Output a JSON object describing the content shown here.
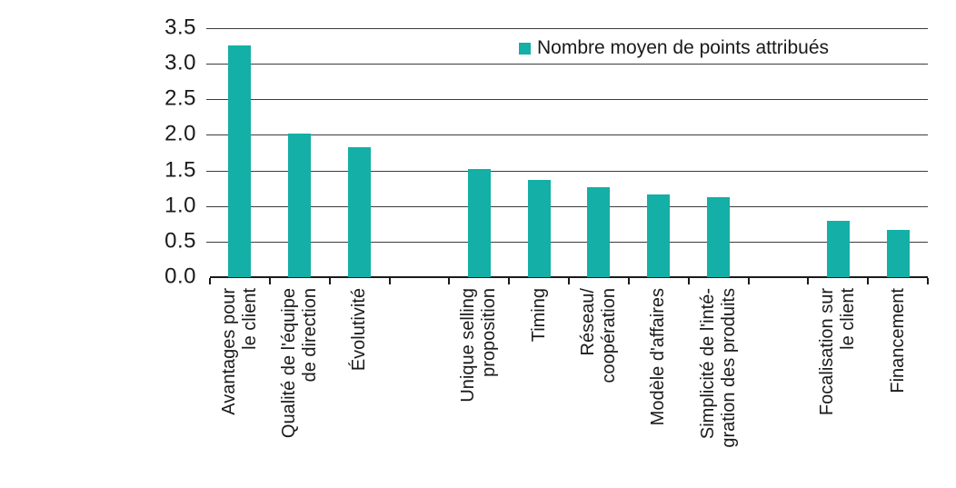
{
  "chart_data": {
    "type": "bar",
    "title": "",
    "xlabel": "",
    "ylabel": "",
    "legend": {
      "label": "Nombre moyen de points attribués",
      "position": "top-right"
    },
    "ylim": [
      0,
      3.5
    ],
    "ytick_step": 0.5,
    "ytick_labels": [
      "0.0",
      "0.5",
      "1.0",
      "1.5",
      "2.0",
      "2.5",
      "3.0",
      "3.5"
    ],
    "grid": "horizontal",
    "bar_color": "#14AFA6",
    "axis_color": "#1a1a1a",
    "gridline_color": "#3c3c3c",
    "groups": [
      {
        "items": [
          {
            "label": "Avantages pour\nle client",
            "value": 3.26
          },
          {
            "label": "Qualité de l'équipe\nde direction",
            "value": 2.02
          },
          {
            "label": "Évolutivité",
            "value": 1.83
          }
        ]
      },
      {
        "items": [
          {
            "label": "Unique selling\nproposition",
            "value": 1.52
          },
          {
            "label": "Timing",
            "value": 1.37
          },
          {
            "label": "Réseau/\ncoopération",
            "value": 1.26
          },
          {
            "label": "Modèle d'affaires",
            "value": 1.16
          },
          {
            "label": "Simplicité de l'inté-\ngration des produits",
            "value": 1.13
          }
        ]
      },
      {
        "items": [
          {
            "label": "Focalisation sur\nle client",
            "value": 0.79
          },
          {
            "label": "Financement",
            "value": 0.66
          }
        ]
      }
    ]
  }
}
